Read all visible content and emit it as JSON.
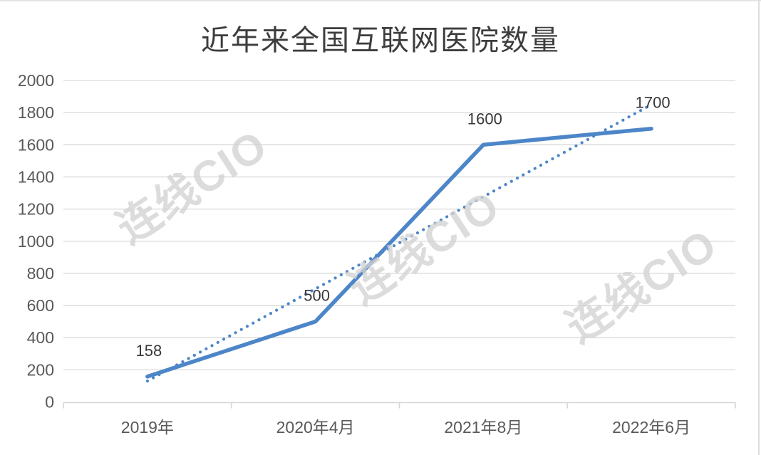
{
  "watermark": {
    "text": "连线CIO"
  },
  "chart_data": {
    "type": "line",
    "title": "近年来全国互联网医院数量",
    "categories": [
      "2019年",
      "2020年4月",
      "2021年8月",
      "2022年6月"
    ],
    "values": [
      158,
      500,
      1600,
      1700
    ],
    "data_labels": [
      "158",
      "500",
      "1600",
      "1700"
    ],
    "yticks": [
      0,
      200,
      400,
      600,
      800,
      1000,
      1200,
      1400,
      1600,
      1800,
      2000
    ],
    "ylim": [
      0,
      2000
    ],
    "grid": true,
    "legend": "none",
    "trendline": {
      "style": "dotted",
      "start_value": 130,
      "end_value": 1850
    },
    "colors": {
      "series_line": "#4d86c8",
      "trendline": "#4d86c8",
      "gridline": "#d9d9d9",
      "axis_line": "#d6d6d6",
      "tick_label": "#595959",
      "data_label": "#383838",
      "title": "#3d3d3d",
      "watermark": "#dcdcdc"
    }
  }
}
